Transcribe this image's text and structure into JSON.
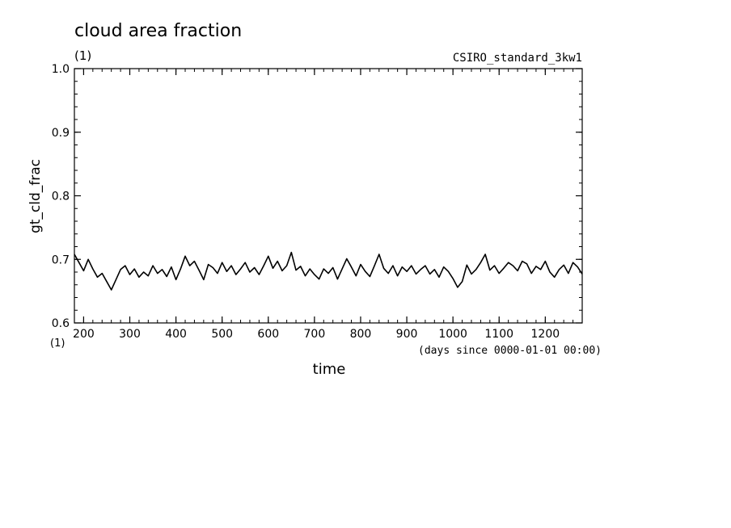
{
  "chart_data": {
    "type": "line",
    "title": "cloud area fraction",
    "units_label": "(1)",
    "dataset_label": "CSIRO_standard_3kw1",
    "ylabel": "gt_cld_frac",
    "xlabel": "time",
    "x_units_label": "(days since 0000-01-01 00:00)",
    "y_axis_units_label": "(1)",
    "xlim": [
      180,
      1280
    ],
    "ylim": [
      0.6,
      1.0
    ],
    "x_ticks": [
      200,
      300,
      400,
      500,
      600,
      700,
      800,
      900,
      1000,
      1100,
      1200
    ],
    "y_ticks": [
      "0.6",
      "0.7",
      "0.8",
      "0.9",
      "1.0"
    ],
    "x_minor_step": 20,
    "y_minor_step": 0.02,
    "grid": false,
    "series": [
      {
        "color": "#000000",
        "x": [
          180,
          190,
          200,
          210,
          220,
          230,
          240,
          250,
          260,
          270,
          280,
          290,
          300,
          310,
          320,
          330,
          340,
          350,
          360,
          370,
          380,
          390,
          400,
          410,
          420,
          430,
          440,
          450,
          460,
          470,
          480,
          490,
          500,
          510,
          520,
          530,
          540,
          550,
          560,
          570,
          580,
          590,
          600,
          610,
          620,
          630,
          640,
          650,
          660,
          670,
          680,
          690,
          700,
          710,
          720,
          730,
          740,
          750,
          760,
          770,
          780,
          790,
          800,
          810,
          820,
          830,
          840,
          850,
          860,
          870,
          880,
          890,
          900,
          910,
          920,
          930,
          940,
          950,
          960,
          970,
          980,
          990,
          1000,
          1010,
          1020,
          1030,
          1040,
          1050,
          1060,
          1070,
          1080,
          1090,
          1100,
          1110,
          1120,
          1130,
          1140,
          1150,
          1160,
          1170,
          1180,
          1190,
          1200,
          1210,
          1220,
          1230,
          1240,
          1250,
          1260,
          1270,
          1280
        ],
        "y": [
          0.708,
          0.695,
          0.682,
          0.7,
          0.685,
          0.672,
          0.678,
          0.665,
          0.652,
          0.668,
          0.684,
          0.69,
          0.676,
          0.685,
          0.672,
          0.68,
          0.674,
          0.69,
          0.678,
          0.684,
          0.673,
          0.688,
          0.668,
          0.685,
          0.705,
          0.69,
          0.697,
          0.683,
          0.668,
          0.692,
          0.687,
          0.678,
          0.695,
          0.681,
          0.69,
          0.676,
          0.685,
          0.695,
          0.68,
          0.687,
          0.676,
          0.69,
          0.705,
          0.686,
          0.697,
          0.682,
          0.69,
          0.711,
          0.683,
          0.689,
          0.674,
          0.685,
          0.676,
          0.669,
          0.685,
          0.678,
          0.687,
          0.669,
          0.685,
          0.701,
          0.688,
          0.674,
          0.692,
          0.681,
          0.673,
          0.69,
          0.708,
          0.686,
          0.678,
          0.69,
          0.674,
          0.688,
          0.681,
          0.69,
          0.677,
          0.684,
          0.69,
          0.677,
          0.684,
          0.672,
          0.688,
          0.681,
          0.67,
          0.656,
          0.665,
          0.691,
          0.677,
          0.684,
          0.695,
          0.708,
          0.683,
          0.69,
          0.678,
          0.686,
          0.695,
          0.69,
          0.682,
          0.697,
          0.693,
          0.678,
          0.689,
          0.684,
          0.697,
          0.68,
          0.672,
          0.684,
          0.691,
          0.678,
          0.695,
          0.688,
          0.677
        ]
      }
    ]
  }
}
